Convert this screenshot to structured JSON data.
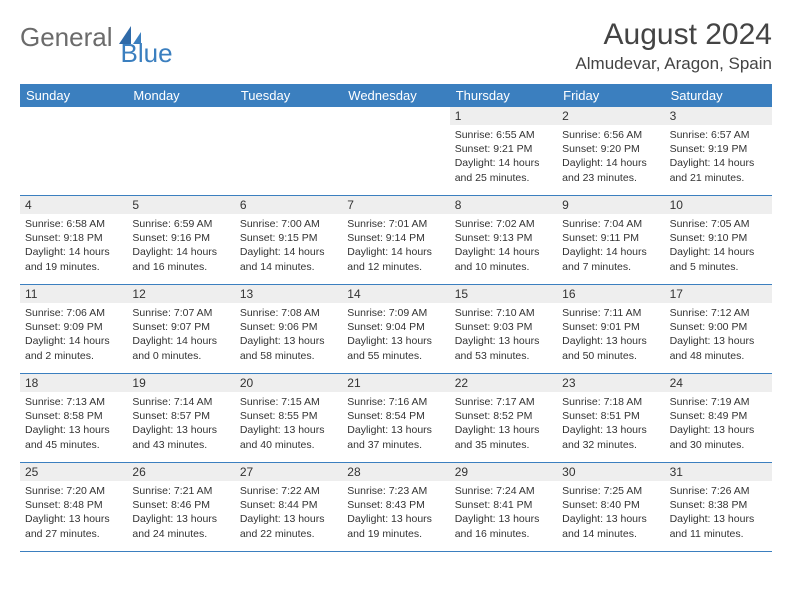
{
  "logo": {
    "text1": "General",
    "text2": "Blue"
  },
  "title": "August 2024",
  "location": "Almudevar, Aragon, Spain",
  "colors": {
    "headerBar": "#3b7fbf",
    "dayNumBg": "#eeeeee",
    "rowBorder": "#3b7fbf",
    "textGray": "#6b6b6b",
    "brandBlue": "#3b7fbf"
  },
  "dayNames": [
    "Sunday",
    "Monday",
    "Tuesday",
    "Wednesday",
    "Thursday",
    "Friday",
    "Saturday"
  ],
  "weeks": [
    [
      {
        "n": "",
        "empty": true
      },
      {
        "n": "",
        "empty": true
      },
      {
        "n": "",
        "empty": true
      },
      {
        "n": "",
        "empty": true
      },
      {
        "n": "1",
        "sunrise": "6:55 AM",
        "sunset": "9:21 PM",
        "daylight": "14 hours and 25 minutes."
      },
      {
        "n": "2",
        "sunrise": "6:56 AM",
        "sunset": "9:20 PM",
        "daylight": "14 hours and 23 minutes."
      },
      {
        "n": "3",
        "sunrise": "6:57 AM",
        "sunset": "9:19 PM",
        "daylight": "14 hours and 21 minutes."
      }
    ],
    [
      {
        "n": "4",
        "sunrise": "6:58 AM",
        "sunset": "9:18 PM",
        "daylight": "14 hours and 19 minutes."
      },
      {
        "n": "5",
        "sunrise": "6:59 AM",
        "sunset": "9:16 PM",
        "daylight": "14 hours and 16 minutes."
      },
      {
        "n": "6",
        "sunrise": "7:00 AM",
        "sunset": "9:15 PM",
        "daylight": "14 hours and 14 minutes."
      },
      {
        "n": "7",
        "sunrise": "7:01 AM",
        "sunset": "9:14 PM",
        "daylight": "14 hours and 12 minutes."
      },
      {
        "n": "8",
        "sunrise": "7:02 AM",
        "sunset": "9:13 PM",
        "daylight": "14 hours and 10 minutes."
      },
      {
        "n": "9",
        "sunrise": "7:04 AM",
        "sunset": "9:11 PM",
        "daylight": "14 hours and 7 minutes."
      },
      {
        "n": "10",
        "sunrise": "7:05 AM",
        "sunset": "9:10 PM",
        "daylight": "14 hours and 5 minutes."
      }
    ],
    [
      {
        "n": "11",
        "sunrise": "7:06 AM",
        "sunset": "9:09 PM",
        "daylight": "14 hours and 2 minutes."
      },
      {
        "n": "12",
        "sunrise": "7:07 AM",
        "sunset": "9:07 PM",
        "daylight": "14 hours and 0 minutes."
      },
      {
        "n": "13",
        "sunrise": "7:08 AM",
        "sunset": "9:06 PM",
        "daylight": "13 hours and 58 minutes."
      },
      {
        "n": "14",
        "sunrise": "7:09 AM",
        "sunset": "9:04 PM",
        "daylight": "13 hours and 55 minutes."
      },
      {
        "n": "15",
        "sunrise": "7:10 AM",
        "sunset": "9:03 PM",
        "daylight": "13 hours and 53 minutes."
      },
      {
        "n": "16",
        "sunrise": "7:11 AM",
        "sunset": "9:01 PM",
        "daylight": "13 hours and 50 minutes."
      },
      {
        "n": "17",
        "sunrise": "7:12 AM",
        "sunset": "9:00 PM",
        "daylight": "13 hours and 48 minutes."
      }
    ],
    [
      {
        "n": "18",
        "sunrise": "7:13 AM",
        "sunset": "8:58 PM",
        "daylight": "13 hours and 45 minutes."
      },
      {
        "n": "19",
        "sunrise": "7:14 AM",
        "sunset": "8:57 PM",
        "daylight": "13 hours and 43 minutes."
      },
      {
        "n": "20",
        "sunrise": "7:15 AM",
        "sunset": "8:55 PM",
        "daylight": "13 hours and 40 minutes."
      },
      {
        "n": "21",
        "sunrise": "7:16 AM",
        "sunset": "8:54 PM",
        "daylight": "13 hours and 37 minutes."
      },
      {
        "n": "22",
        "sunrise": "7:17 AM",
        "sunset": "8:52 PM",
        "daylight": "13 hours and 35 minutes."
      },
      {
        "n": "23",
        "sunrise": "7:18 AM",
        "sunset": "8:51 PM",
        "daylight": "13 hours and 32 minutes."
      },
      {
        "n": "24",
        "sunrise": "7:19 AM",
        "sunset": "8:49 PM",
        "daylight": "13 hours and 30 minutes."
      }
    ],
    [
      {
        "n": "25",
        "sunrise": "7:20 AM",
        "sunset": "8:48 PM",
        "daylight": "13 hours and 27 minutes."
      },
      {
        "n": "26",
        "sunrise": "7:21 AM",
        "sunset": "8:46 PM",
        "daylight": "13 hours and 24 minutes."
      },
      {
        "n": "27",
        "sunrise": "7:22 AM",
        "sunset": "8:44 PM",
        "daylight": "13 hours and 22 minutes."
      },
      {
        "n": "28",
        "sunrise": "7:23 AM",
        "sunset": "8:43 PM",
        "daylight": "13 hours and 19 minutes."
      },
      {
        "n": "29",
        "sunrise": "7:24 AM",
        "sunset": "8:41 PM",
        "daylight": "13 hours and 16 minutes."
      },
      {
        "n": "30",
        "sunrise": "7:25 AM",
        "sunset": "8:40 PM",
        "daylight": "13 hours and 14 minutes."
      },
      {
        "n": "31",
        "sunrise": "7:26 AM",
        "sunset": "8:38 PM",
        "daylight": "13 hours and 11 minutes."
      }
    ]
  ],
  "labels": {
    "sunrise": "Sunrise:",
    "sunset": "Sunset:",
    "daylight": "Daylight:"
  }
}
